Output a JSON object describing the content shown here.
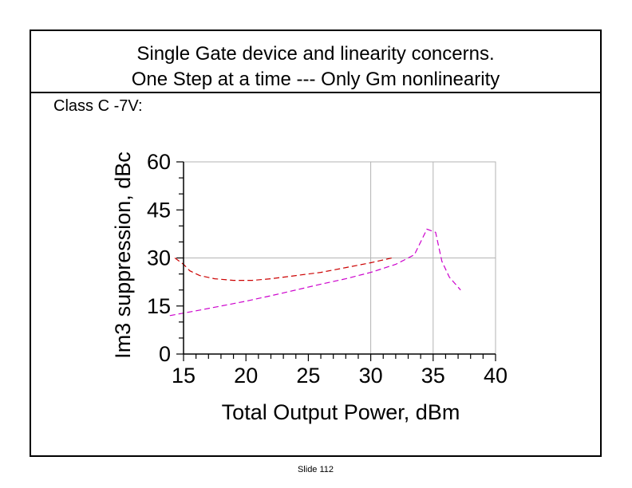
{
  "slide": {
    "title_line1": "Single Gate device and linearity concerns.",
    "title_line2": "One Step at a time --- Only Gm nonlinearity",
    "subtitle": "Class C -7V:",
    "slide_number": "Slide 112"
  },
  "colors": {
    "series_red": "#cc0000",
    "series_magenta": "#cc00cc",
    "grid": "#b3b3b3",
    "frame": "#000000"
  },
  "chart_data": {
    "type": "line",
    "title": "",
    "xlabel": "Total Output Power, dBm",
    "ylabel": "Im3 suppression, dBc",
    "xlim": [
      15,
      40
    ],
    "ylim": [
      0,
      60
    ],
    "x_ticks": [
      "15",
      "20",
      "25",
      "30",
      "35",
      "40"
    ],
    "y_ticks": [
      "0",
      "15",
      "30",
      "45",
      "60"
    ],
    "grid": "vertical at 30 and 35, horizontal at 30",
    "series": [
      {
        "color": "#cc0000",
        "line_style": "dashed",
        "x": [
          14.3,
          15,
          15.5,
          16.3,
          17.5,
          19,
          20.5,
          22,
          24,
          26,
          28,
          30,
          31.7
        ],
        "y": [
          30,
          28,
          26,
          24.5,
          23.5,
          23,
          23,
          23.5,
          24.5,
          25.5,
          27,
          28.5,
          30
        ]
      },
      {
        "color": "#cc00cc",
        "line_style": "dashed",
        "x": [
          13.9,
          16,
          18,
          20,
          22,
          24,
          26,
          28,
          30,
          32,
          33.5,
          34.5,
          35.2,
          35.7,
          36.3,
          37.2
        ],
        "y": [
          12,
          13.5,
          15,
          16.5,
          18.2,
          20,
          21.8,
          23.5,
          25.5,
          28,
          31,
          39,
          38,
          29,
          24,
          20
        ]
      }
    ]
  }
}
